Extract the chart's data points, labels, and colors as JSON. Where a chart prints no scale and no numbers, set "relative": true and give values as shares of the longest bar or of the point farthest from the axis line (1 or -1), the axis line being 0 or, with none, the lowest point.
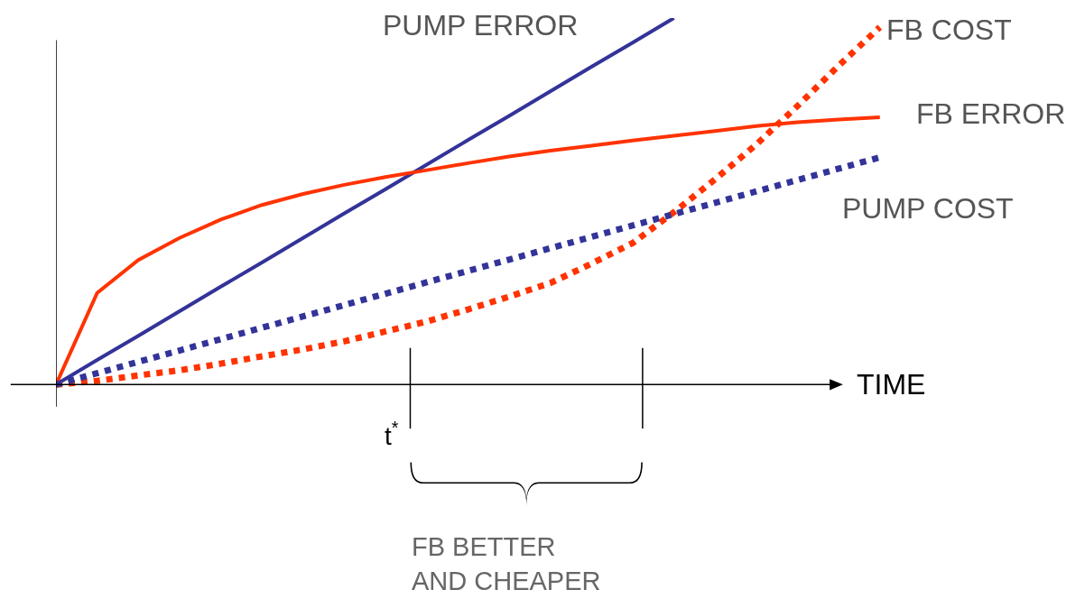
{
  "chart_data": {
    "type": "line",
    "relative": true,
    "xlabel": "TIME",
    "categories": [
      null,
      null,
      null,
      null,
      null,
      null,
      null,
      null,
      null,
      null,
      null,
      null,
      null,
      null,
      null,
      null,
      null,
      null,
      null,
      null,
      null
    ],
    "legend": false,
    "series": [
      {
        "name": "PUMP ERROR",
        "color": "#333399",
        "line_style": "solid",
        "values": [
          0,
          0.067,
          0.133,
          0.2,
          0.267,
          0.333,
          0.4,
          0.467,
          0.533,
          0.6,
          0.667,
          0.733,
          0.8,
          0.867,
          0.933,
          1,
          null,
          null,
          null,
          null,
          null
        ]
      },
      {
        "name": "FB COST",
        "color": "#ff3300",
        "line_style": "dotted",
        "values": [
          0,
          0.01,
          0.025,
          0.039,
          0.057,
          0.077,
          0.096,
          0.118,
          0.145,
          0.172,
          0.205,
          0.24,
          0.277,
          0.33,
          0.386,
          0.47,
          0.56,
          0.655,
          0.76,
          0.87,
          0.975
        ]
      },
      {
        "name": "FB ERROR",
        "color": "#ff3300",
        "line_style": "solid",
        "values": [
          0,
          0.25,
          0.34,
          0.4,
          0.45,
          0.49,
          0.52,
          0.545,
          0.566,
          0.585,
          0.604,
          0.622,
          0.638,
          0.652,
          0.666,
          0.679,
          0.692,
          0.705,
          0.716,
          0.723,
          0.729
        ]
      },
      {
        "name": "PUMP COST",
        "color": "#333399",
        "line_style": "dotted",
        "values": [
          0,
          0.031,
          0.062,
          0.093,
          0.124,
          0.155,
          0.186,
          0.217,
          0.248,
          0.279,
          0.31,
          0.341,
          0.372,
          0.403,
          0.434,
          0.465,
          0.496,
          0.527,
          0.558,
          0.589,
          0.62
        ]
      }
    ],
    "annotations": [
      "t$^{*}$",
      "FB BETTER\nAND CHEAPER"
    ]
  }
}
